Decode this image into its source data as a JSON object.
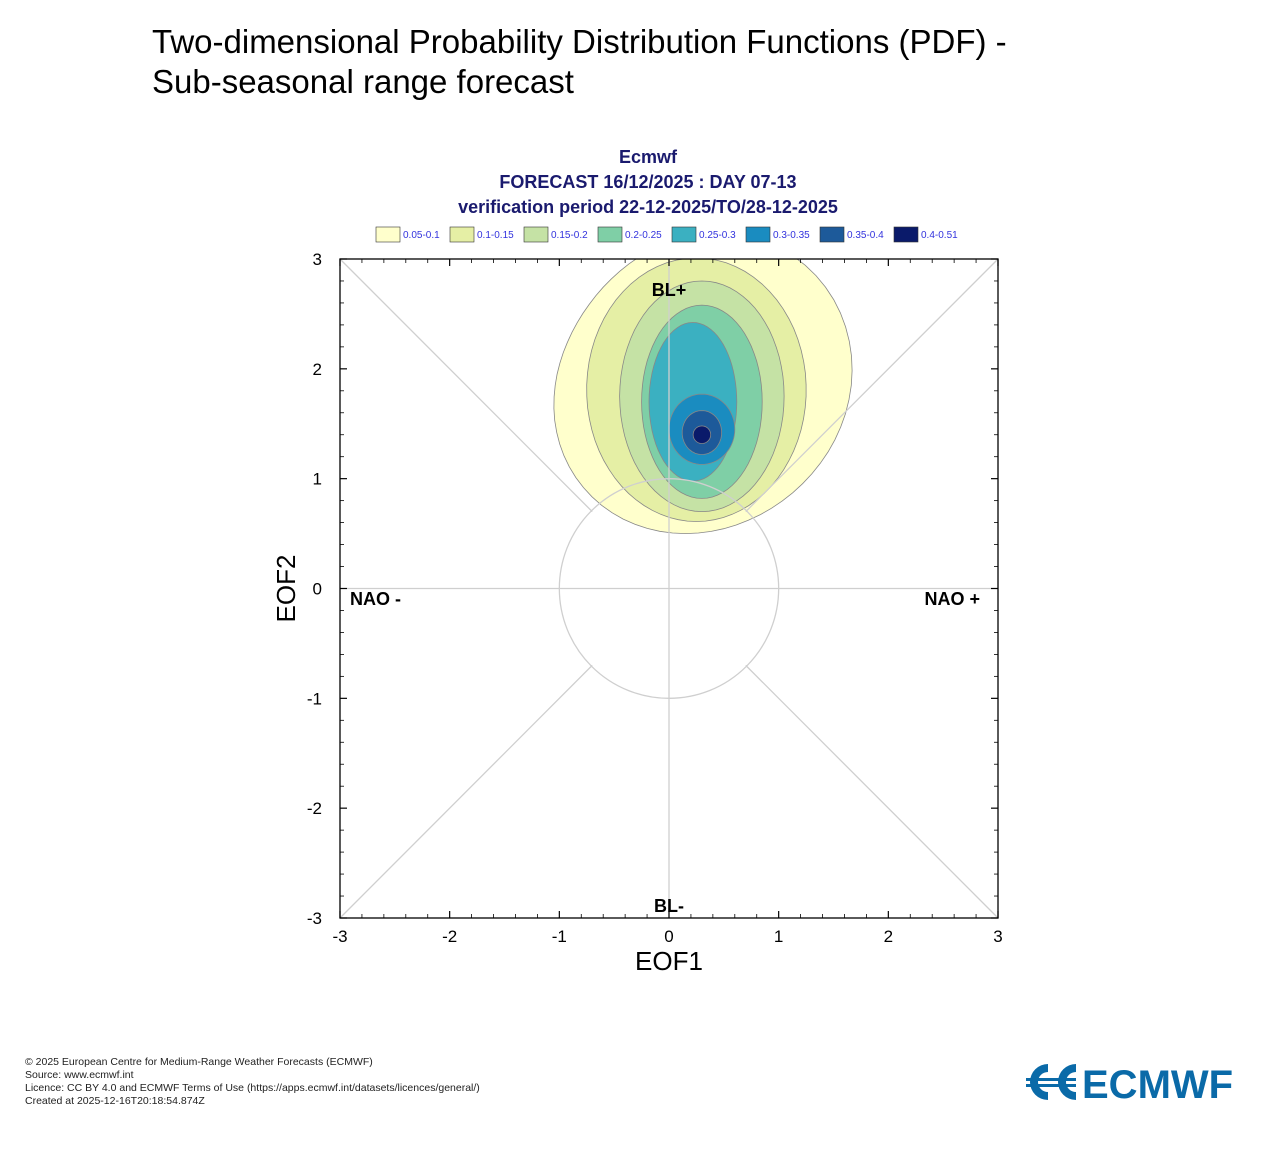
{
  "page": {
    "title_line1": "Two-dimensional Probability Distribution Functions (PDF) -",
    "title_line2": "Sub-seasonal range forecast"
  },
  "chart_data": {
    "type": "contour",
    "header": {
      "line1": "Ecmwf",
      "line2": "FORECAST 16/12/2025 : DAY 07-13",
      "line3": "verification period 22-12-2025/TO/28-12-2025"
    },
    "xlabel": "EOF1",
    "ylabel": "EOF2",
    "xlim": [
      -3,
      3
    ],
    "ylim": [
      -3,
      3
    ],
    "x_ticks": [
      "-3",
      "-2",
      "-1",
      "0",
      "1",
      "2",
      "3"
    ],
    "y_ticks": [
      "3",
      "2",
      "1",
      "0",
      "-1",
      "-2",
      "-3"
    ],
    "grid": false,
    "regions": {
      "top": "BL+",
      "bottom": "BL-",
      "left": "NAO -",
      "right": "NAO +"
    },
    "legend_position": "top",
    "levels": [
      {
        "label": "0.05-0.1",
        "color": "#ffffcc"
      },
      {
        "label": "0.1-0.15",
        "color": "#e5efa5"
      },
      {
        "label": "0.15-0.2",
        "color": "#c5e2a5"
      },
      {
        "label": "0.2-0.25",
        "color": "#7fcfa6"
      },
      {
        "label": "0.25-0.3",
        "color": "#3bb0c1"
      },
      {
        "label": "0.3-0.35",
        "color": "#1a8cc0"
      },
      {
        "label": "0.35-0.4",
        "color": "#1d5a9a"
      },
      {
        "label": "0.4-0.51",
        "color": "#0a1a6a"
      }
    ],
    "pdf_maximum": {
      "eof1": 0.3,
      "eof2": 1.4
    }
  },
  "footer": {
    "line1": "© 2025 European Centre for Medium-Range Weather Forecasts (ECMWF)",
    "line2": "Source: www.ecmwf.int",
    "line3": "Licence: CC BY 4.0 and ECMWF Terms of Use (https://apps.ecmwf.int/datasets/licences/general/)",
    "line4": "Created at 2025-12-16T20:18:54.874Z"
  },
  "logo": {
    "text": "ECMWF",
    "color": "#0a6aa8"
  }
}
